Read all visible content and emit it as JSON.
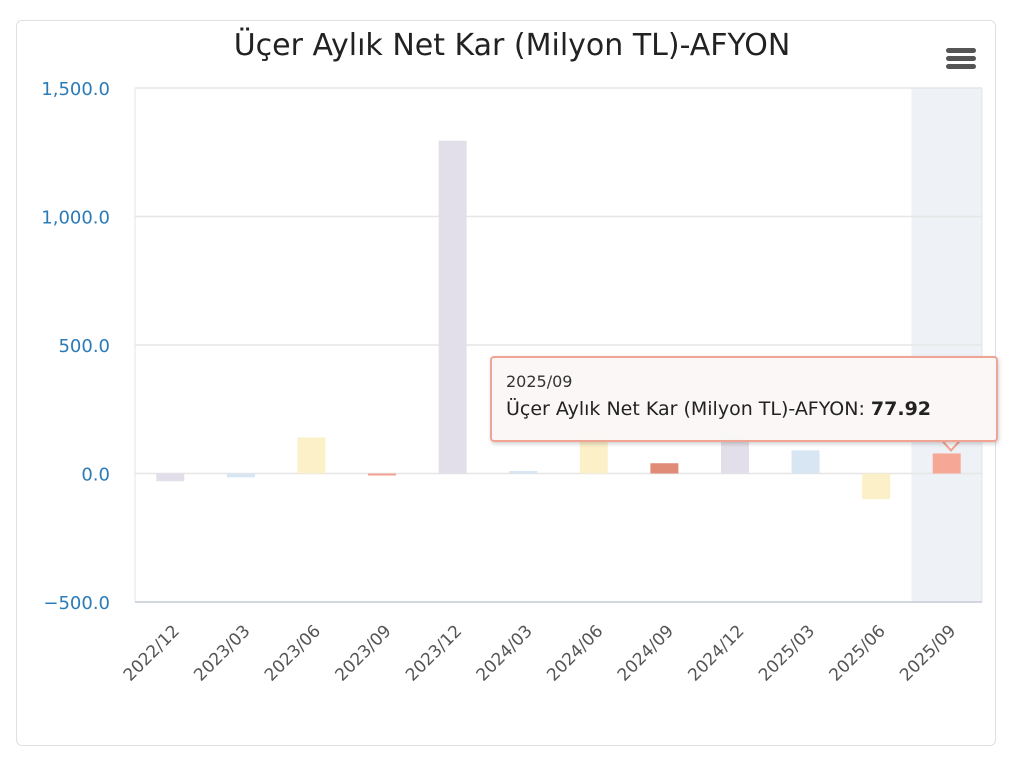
{
  "menu": {
    "icon": "hamburger-menu-icon"
  },
  "tooltip": {
    "category": "2025/09",
    "series_label": "Üçer Aylık Net Kar (Milyon TL)-AFYON: ",
    "value_text": "77.92"
  },
  "colors": {
    "axis_text": "#2b7bb9",
    "grid": "#e6e6e6",
    "highlight_band": "#eef2f7",
    "tooltip_border": "#f0a494"
  },
  "chart_data": {
    "type": "bar",
    "title": "Üçer Aylık Net Kar (Milyon TL)-AFYON",
    "xlabel": "",
    "ylabel": "",
    "ylim": [
      -500,
      1500
    ],
    "yticks": [
      -500,
      0,
      500,
      1000,
      1500
    ],
    "ytick_labels": [
      "−500.0",
      "0.0",
      "500.0",
      "1,000.0",
      "1,500.0"
    ],
    "categories": [
      "2022/12",
      "2023/03",
      "2023/06",
      "2023/09",
      "2023/12",
      "2024/03",
      "2024/06",
      "2024/09",
      "2024/12",
      "2025/03",
      "2025/06",
      "2025/09"
    ],
    "values": [
      -30,
      -15,
      140,
      -8,
      1295,
      10,
      155,
      40,
      155,
      90,
      -100,
      77.92
    ],
    "bar_colors": [
      "#e3dfea",
      "#d7e6f2",
      "#fbf0c8",
      "#f0a494",
      "#e3dfea",
      "#d7e6f2",
      "#fbf0c8",
      "#e08a78",
      "#e3dfea",
      "#d7e6f2",
      "#fbf0c8",
      "#f7a796"
    ],
    "highlighted_category": "2025/09",
    "grid": true,
    "legend": "none"
  }
}
